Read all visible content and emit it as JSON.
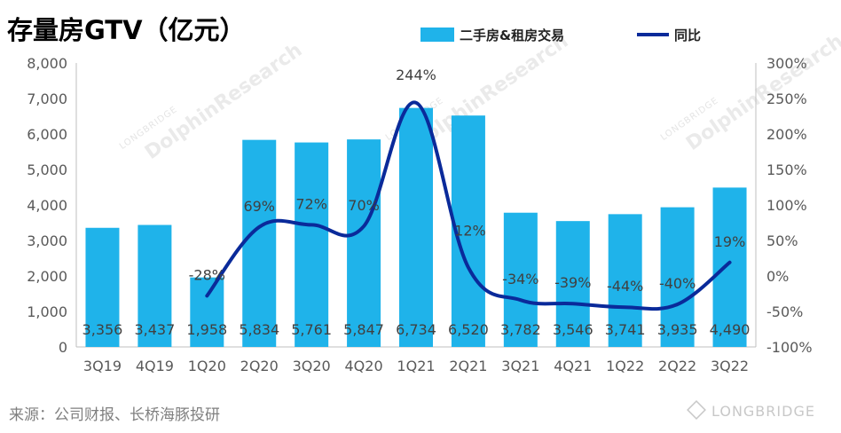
{
  "title": "存量房GTV（亿元）",
  "source": "来源：公司财报、长桥海豚投研",
  "brand": "LONGBRIDGE",
  "watermark": "DolphinResearch",
  "watermark_small": "LONGBRIDGE",
  "colors": {
    "bar": "#1fb3ea",
    "line": "#0a2a9a",
    "axis": "#bfbfbf"
  },
  "chart_data": {
    "type": "bar",
    "categories": [
      "3Q19",
      "4Q19",
      "1Q20",
      "2Q20",
      "3Q20",
      "4Q20",
      "1Q21",
      "2Q21",
      "3Q21",
      "4Q21",
      "1Q22",
      "2Q22",
      "3Q22"
    ],
    "series": [
      {
        "name": "二手房&租房交易",
        "type": "bar",
        "axis": "left",
        "values": [
          3356,
          3437,
          1958,
          5834,
          5761,
          5847,
          6734,
          6520,
          3782,
          3546,
          3741,
          3935,
          4490
        ],
        "labels": [
          "3,356",
          "3,437",
          "1,958",
          "5,834",
          "5,761",
          "5,847",
          "6,734",
          "6,520",
          "3,782",
          "3,546",
          "3,741",
          "3,935",
          "4,490"
        ]
      },
      {
        "name": "同比",
        "type": "line",
        "axis": "right",
        "values": [
          null,
          null,
          -28,
          69,
          72,
          70,
          244,
          12,
          -34,
          -39,
          -44,
          -40,
          19
        ],
        "labels": [
          "",
          "",
          "-28%",
          "69%",
          "72%",
          "70%",
          "244%",
          "12%",
          "-34%",
          "-39%",
          "-44%",
          "-40%",
          "19%"
        ]
      }
    ],
    "y_left": {
      "min": 0,
      "max": 8000,
      "step": 1000,
      "ticks": [
        "0",
        "1,000",
        "2,000",
        "3,000",
        "4,000",
        "5,000",
        "6,000",
        "7,000",
        "8,000"
      ]
    },
    "y_right": {
      "min": -100,
      "max": 300,
      "step": 50,
      "ticks": [
        "-100%",
        "-50%",
        "0%",
        "50%",
        "100%",
        "150%",
        "200%",
        "250%",
        "300%"
      ]
    },
    "grid": false,
    "legend_position": "top-right"
  }
}
